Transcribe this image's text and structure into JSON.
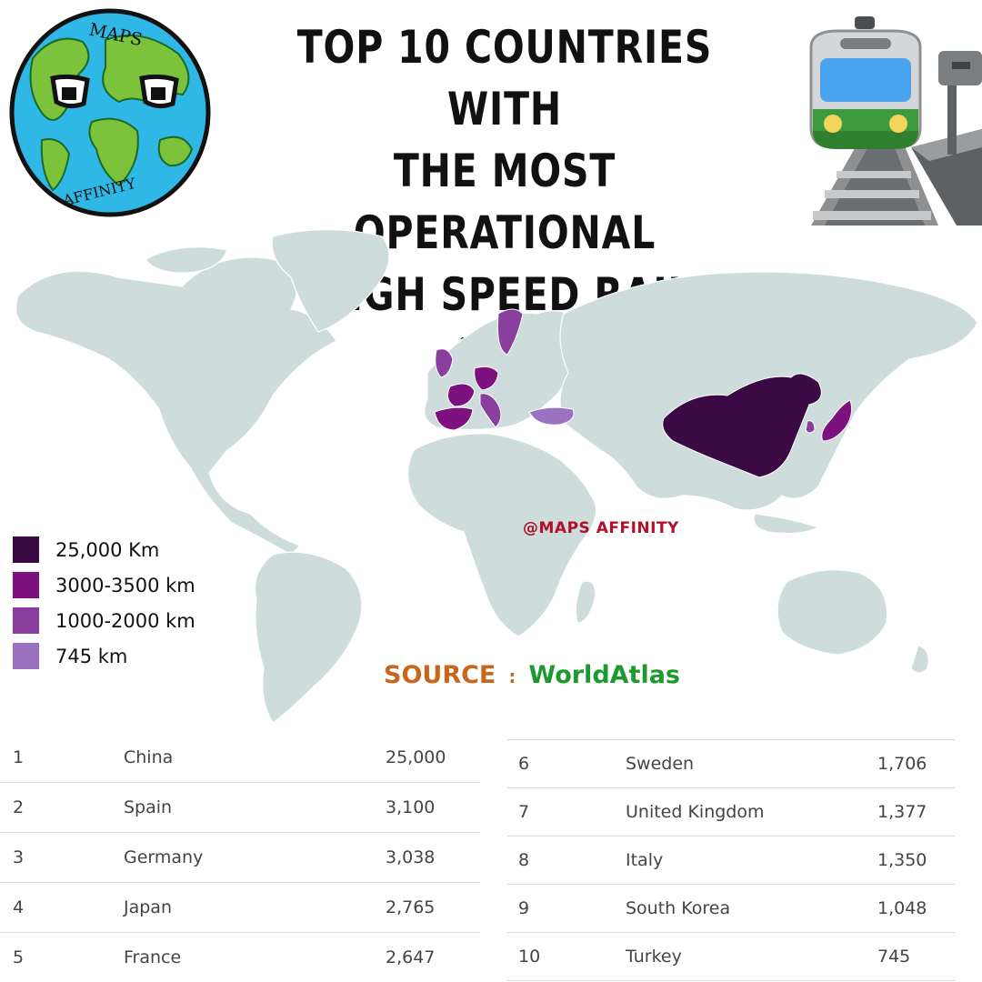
{
  "header": {
    "title_lines": [
      "TOP 10 COUNTRIES WITH",
      "THE MOST OPERATIONAL",
      "HIGH SPEED RAIL (KM)"
    ],
    "logo_top_text": "MAPS",
    "logo_bottom_text": "AFFINITY"
  },
  "legend": [
    {
      "label": "25,000 Km",
      "color": "#3b0a45"
    },
    {
      "label": "3000-3500 km",
      "color": "#7d1180"
    },
    {
      "label": "1000-2000 km",
      "color": "#8a3f9e"
    },
    {
      "label": "745 km",
      "color": "#9b72c0"
    }
  ],
  "watermark": "@MAPS AFFINITY",
  "source": {
    "label": "SOURCE",
    "separator": ":",
    "value": "WorldAtlas"
  },
  "ranking": [
    {
      "rank": "1",
      "country": "China",
      "km": "25,000"
    },
    {
      "rank": "2",
      "country": "Spain",
      "km": "3,100"
    },
    {
      "rank": "3",
      "country": "Germany",
      "km": "3,038"
    },
    {
      "rank": "4",
      "country": "Japan",
      "km": "2,765"
    },
    {
      "rank": "5",
      "country": "France",
      "km": "2,647"
    },
    {
      "rank": "6",
      "country": "Sweden",
      "km": "1,706"
    },
    {
      "rank": "7",
      "country": "United Kingdom",
      "km": "1,377"
    },
    {
      "rank": "8",
      "country": "Italy",
      "km": "1,350"
    },
    {
      "rank": "9",
      "country": "South Korea",
      "km": "1,048"
    },
    {
      "rank": "10",
      "country": "Turkey",
      "km": "745"
    }
  ],
  "colors": {
    "land": "#cfdcdc",
    "ocean": "#ffffff"
  }
}
